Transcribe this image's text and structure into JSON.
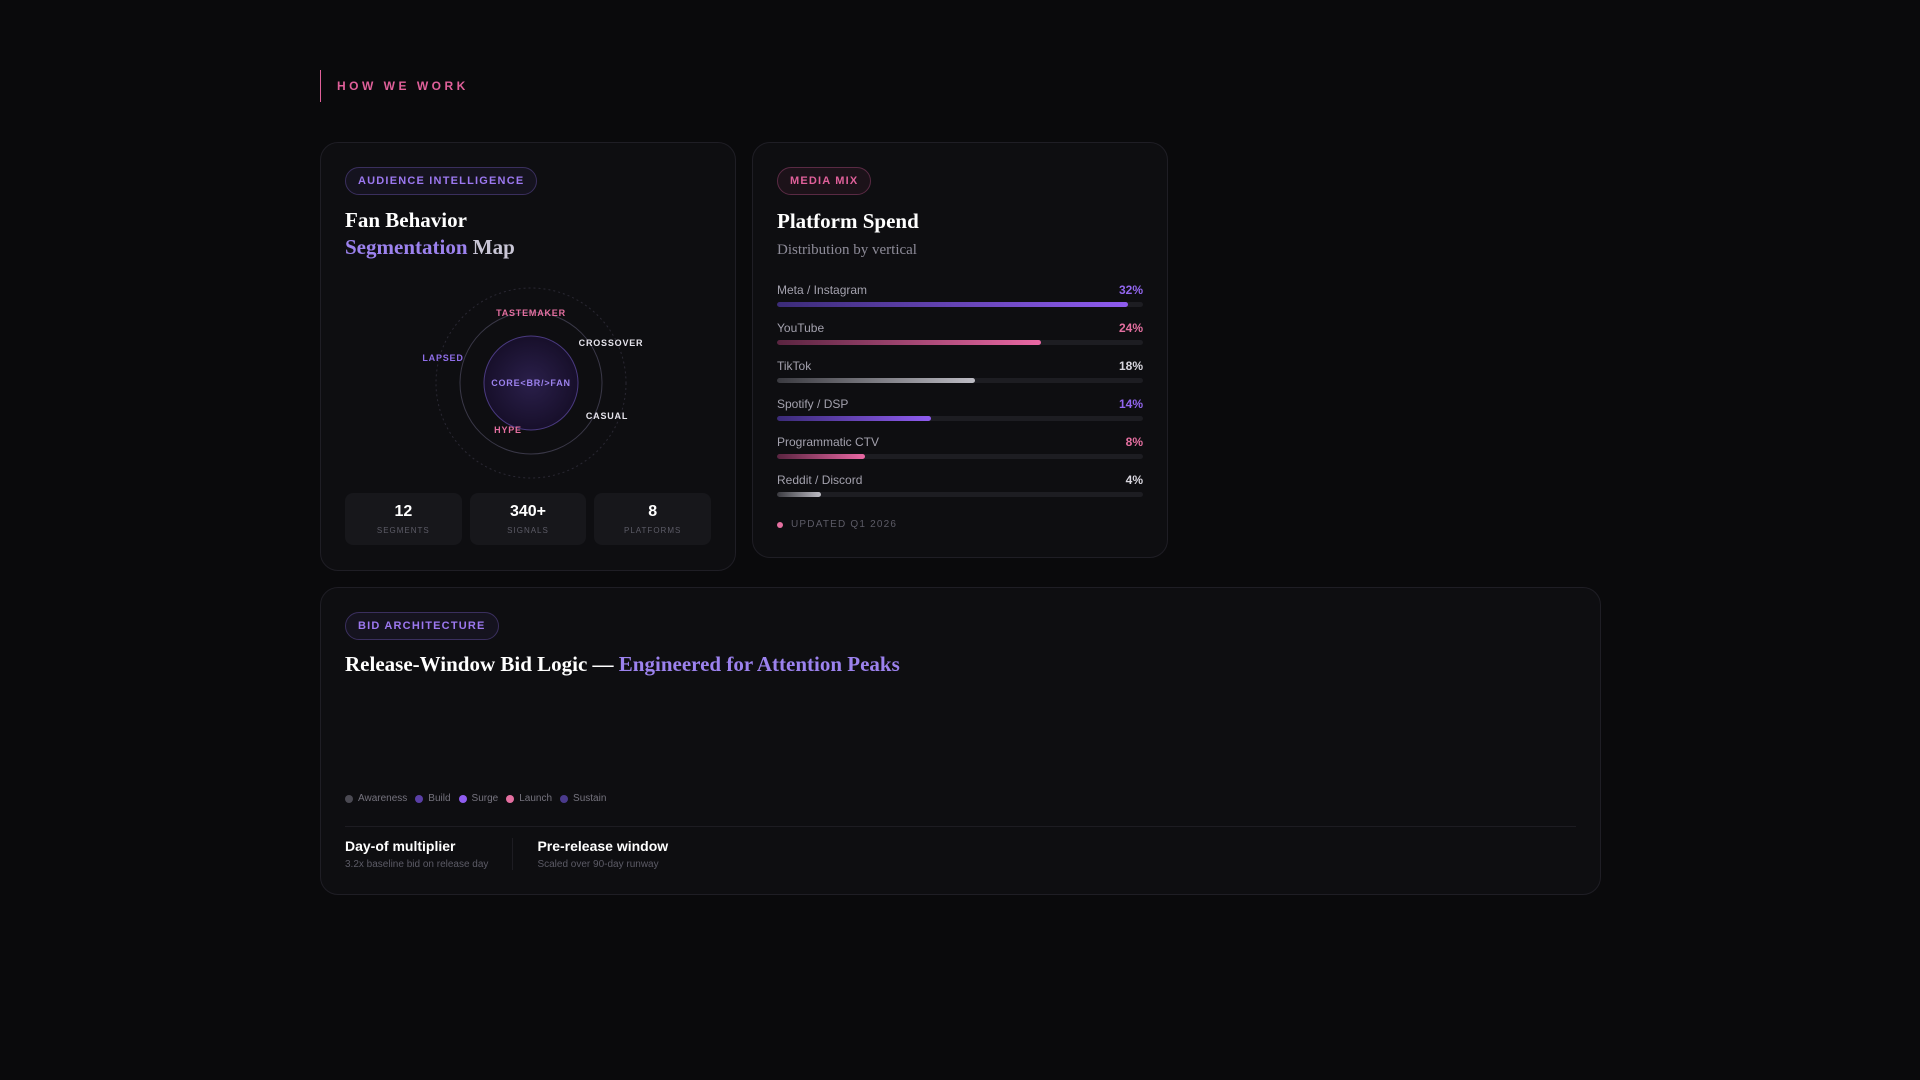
{
  "section": {
    "eyebrow": "HOW WE WORK"
  },
  "audience": {
    "badge": "AUDIENCE INTELLIGENCE",
    "title_line1": "Fan Behavior",
    "title_line2_accent": "Segmentation",
    "title_line2_rest": " Map",
    "center_label": "CORE<BR/>FAN",
    "segments": [
      {
        "label": "TASTEMAKER",
        "color": "#e46fa0"
      },
      {
        "label": "CROSSOVER",
        "color": "#e6e4ec"
      },
      {
        "label": "LAPSED",
        "color": "#8f6ee8"
      },
      {
        "label": "HYPE",
        "color": "#e46fa0"
      },
      {
        "label": "CASUAL",
        "color": "#e6e4ec"
      }
    ],
    "stats": [
      {
        "value": "12",
        "label": "SEGMENTS"
      },
      {
        "value": "340+",
        "label": "SIGNALS"
      },
      {
        "value": "8",
        "label": "PLATFORMS"
      }
    ]
  },
  "media": {
    "badge": "MEDIA MIX",
    "title": "Platform Spend",
    "subtitle": "Distribution by vertical",
    "platforms": [
      {
        "name": "Meta / Instagram",
        "pct_label": "32%",
        "share": 0.96,
        "pct_color": "#9266ee",
        "gradient": [
          "#3b2b78",
          "#8f5cf0"
        ]
      },
      {
        "name": "YouTube",
        "pct_label": "24%",
        "share": 0.72,
        "pct_color": "#e46fa0",
        "gradient": [
          "#5a2440",
          "#ea68a4"
        ]
      },
      {
        "name": "TikTok",
        "pct_label": "18%",
        "share": 0.54,
        "pct_color": "#d8d6de",
        "gradient": [
          "#3a3a40",
          "#bdbcc4"
        ]
      },
      {
        "name": "Spotify / DSP",
        "pct_label": "14%",
        "share": 0.42,
        "pct_color": "#9266ee",
        "gradient": [
          "#3b2b78",
          "#8f5cf0"
        ]
      },
      {
        "name": "Programmatic CTV",
        "pct_label": "8%",
        "share": 0.24,
        "pct_color": "#e46fa0",
        "gradient": [
          "#5a2440",
          "#ea68a4"
        ]
      },
      {
        "name": "Reddit / Discord",
        "pct_label": "4%",
        "share": 0.12,
        "pct_color": "#d8d6de",
        "gradient": [
          "#3a3a40",
          "#bdbcc4"
        ]
      }
    ],
    "updated": "UPDATED Q1 2026",
    "updated_dot_color": "#e46fa0"
  },
  "bid": {
    "badge": "BID ARCHITECTURE",
    "title_main": "Release-Window Bid Logic — ",
    "title_accent": "Engineered for Attention Peaks",
    "legend": [
      {
        "label": "Awareness",
        "color": "#4a4952"
      },
      {
        "label": "Build",
        "color": "#5a3fa6"
      },
      {
        "label": "Surge",
        "color": "#8f5cf0"
      },
      {
        "label": "Launch",
        "color": "#e46fa0"
      },
      {
        "label": "Sustain",
        "color": "#4a3a8c"
      }
    ],
    "metrics": [
      {
        "title": "Day-of multiplier",
        "desc": "3.2x baseline bid on release day"
      },
      {
        "title": "Pre-release window",
        "desc": "Scaled over 90-day runway"
      }
    ]
  }
}
